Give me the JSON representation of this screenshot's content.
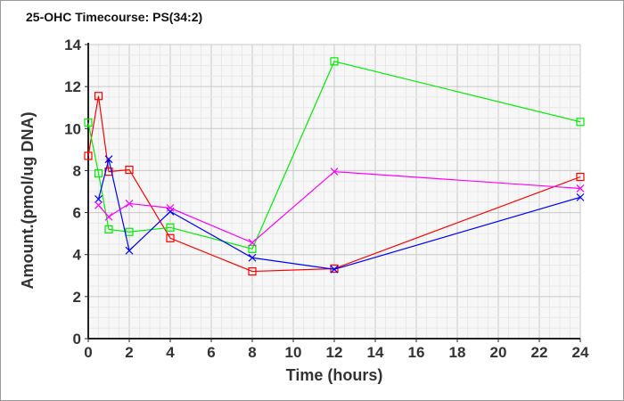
{
  "chart_data": {
    "type": "line",
    "title": "25-OHC Timecourse: PS(34:2)",
    "xlabel": "Time (hours)",
    "ylabel": "Amount.(pmol/ug DNA)",
    "xlim": [
      0,
      24
    ],
    "ylim": [
      0,
      14
    ],
    "xticks": [
      0,
      2,
      4,
      6,
      8,
      10,
      12,
      14,
      16,
      18,
      20,
      22,
      24
    ],
    "yticks": [
      0,
      2,
      4,
      6,
      8,
      10,
      12,
      14
    ],
    "grid": true,
    "legend": "none",
    "series": [
      {
        "name": "red",
        "color": "#ff0000",
        "marker": "square",
        "x": [
          0,
          0.5,
          1,
          2,
          4,
          8,
          12,
          24
        ],
        "y": [
          8.7,
          11.55,
          7.95,
          8.04,
          4.78,
          3.2,
          3.33,
          7.7
        ]
      },
      {
        "name": "green",
        "color": "#00ee00",
        "marker": "square",
        "x": [
          0,
          0.5,
          1,
          2,
          4,
          8,
          12,
          24
        ],
        "y": [
          10.28,
          7.87,
          5.2,
          5.08,
          5.29,
          4.27,
          13.2,
          10.32
        ]
      },
      {
        "name": "blue",
        "color": "#0000ff",
        "marker": "x",
        "x": [
          0.5,
          1,
          2,
          4,
          8,
          12,
          24
        ],
        "y": [
          6.64,
          8.54,
          4.19,
          6.05,
          3.85,
          3.3,
          6.73
        ]
      },
      {
        "name": "magenta",
        "color": "#ff00ff",
        "marker": "x",
        "x": [
          0.5,
          1,
          2,
          4,
          8,
          12,
          24
        ],
        "y": [
          6.35,
          5.8,
          6.43,
          6.22,
          4.57,
          7.95,
          7.15
        ]
      }
    ]
  }
}
